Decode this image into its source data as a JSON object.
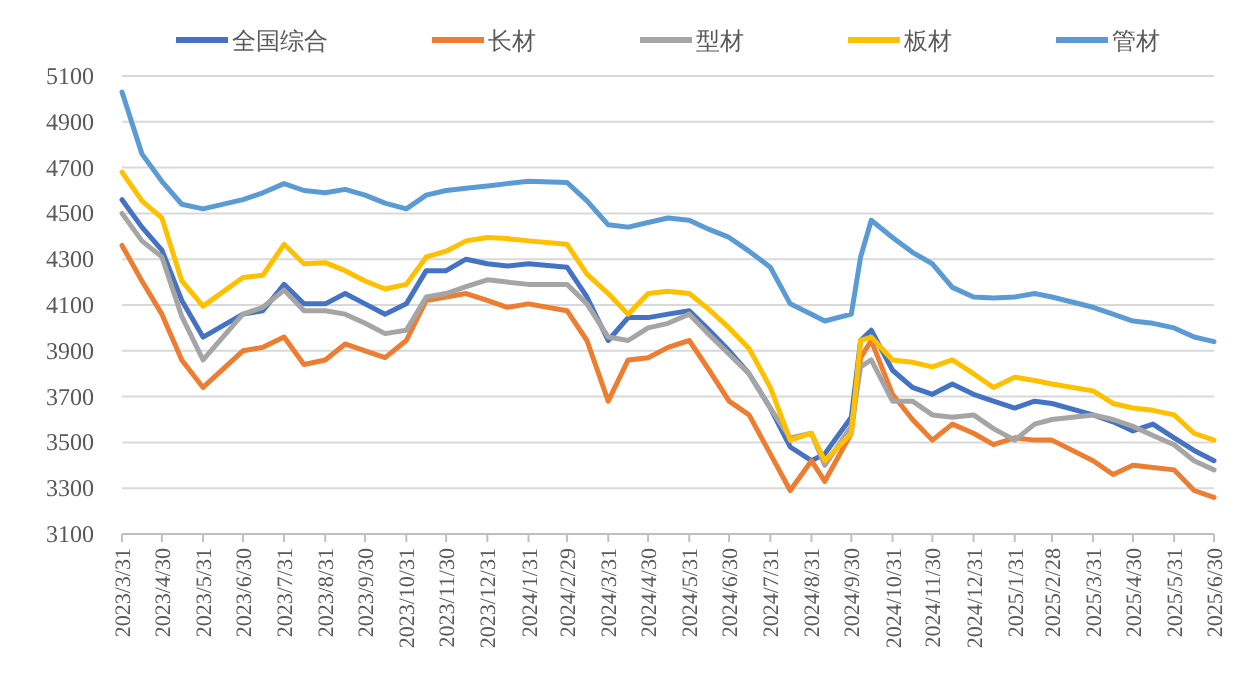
{
  "chart_data": {
    "type": "line",
    "legend": "top",
    "grid": "y",
    "marker": "none",
    "line_style": "solid",
    "x": [
      "2023-03-31",
      "2023-04-15",
      "2023-04-30",
      "2023-05-15",
      "2023-05-31",
      "2023-06-30",
      "2023-07-15",
      "2023-07-31",
      "2023-08-15",
      "2023-08-31",
      "2023-09-15",
      "2023-09-30",
      "2023-10-15",
      "2023-10-31",
      "2023-11-15",
      "2023-11-30",
      "2023-12-15",
      "2023-12-31",
      "2024-01-15",
      "2024-01-31",
      "2024-02-29",
      "2024-03-15",
      "2024-03-31",
      "2024-04-15",
      "2024-04-30",
      "2024-05-15",
      "2024-05-31",
      "2024-06-15",
      "2024-06-30",
      "2024-07-15",
      "2024-07-31",
      "2024-08-15",
      "2024-08-31",
      "2024-09-10",
      "2024-09-30",
      "2024-10-07",
      "2024-10-15",
      "2024-10-31",
      "2024-11-15",
      "2024-11-30",
      "2024-12-15",
      "2024-12-31",
      "2025-01-15",
      "2025-01-31",
      "2025-02-15",
      "2025-02-28",
      "2025-03-31",
      "2025-04-15",
      "2025-04-30",
      "2025-05-15",
      "2025-05-31",
      "2025-06-15",
      "2025-06-30"
    ],
    "xlim": [
      "2023-03-31",
      "2025-06-30"
    ],
    "xticks": [
      {
        "value": "2023-03-31",
        "label": "2023/3/31"
      },
      {
        "value": "2023-04-30",
        "label": "2023/4/30"
      },
      {
        "value": "2023-05-31",
        "label": "2023/5/31"
      },
      {
        "value": "2023-06-30",
        "label": "2023/6/30"
      },
      {
        "value": "2023-07-31",
        "label": "2023/7/31"
      },
      {
        "value": "2023-08-31",
        "label": "2023/8/31"
      },
      {
        "value": "2023-09-30",
        "label": "2023/9/30"
      },
      {
        "value": "2023-10-31",
        "label": "2023/10/31"
      },
      {
        "value": "2023-11-30",
        "label": "2023/11/30"
      },
      {
        "value": "2023-12-31",
        "label": "2023/12/31"
      },
      {
        "value": "2024-01-31",
        "label": "2024/1/31"
      },
      {
        "value": "2024-02-29",
        "label": "2024/2/29"
      },
      {
        "value": "2024-03-31",
        "label": "2024/3/31"
      },
      {
        "value": "2024-04-30",
        "label": "2024/4/30"
      },
      {
        "value": "2024-05-31",
        "label": "2024/5/31"
      },
      {
        "value": "2024-06-30",
        "label": "2024/6/30"
      },
      {
        "value": "2024-07-31",
        "label": "2024/7/31"
      },
      {
        "value": "2024-08-31",
        "label": "2024/8/31"
      },
      {
        "value": "2024-09-30",
        "label": "2024/9/30"
      },
      {
        "value": "2024-10-31",
        "label": "2024/10/31"
      },
      {
        "value": "2024-11-30",
        "label": "2024/11/30"
      },
      {
        "value": "2024-12-31",
        "label": "2024/12/31"
      },
      {
        "value": "2025-01-31",
        "label": "2025/1/31"
      },
      {
        "value": "2025-02-28",
        "label": "2025/2/28"
      },
      {
        "value": "2025-03-31",
        "label": "2025/3/31"
      },
      {
        "value": "2025-04-30",
        "label": "2025/4/30"
      },
      {
        "value": "2025-05-31",
        "label": "2025/5/31"
      },
      {
        "value": "2025-06-30",
        "label": "2025/6/30"
      }
    ],
    "ylim": [
      3100,
      5100
    ],
    "yticks": [
      3100,
      3300,
      3500,
      3700,
      3900,
      4100,
      4300,
      4500,
      4700,
      4900,
      5100
    ],
    "series": [
      {
        "name": "全国综合",
        "color": "#4472c4",
        "values": [
          4560,
          4440,
          4340,
          4120,
          3960,
          4060,
          4075,
          4190,
          4105,
          4105,
          4150,
          4105,
          4060,
          4105,
          4250,
          4250,
          4300,
          4280,
          4270,
          4280,
          4265,
          4135,
          3945,
          4045,
          4045,
          4060,
          4075,
          3990,
          3900,
          3800,
          3650,
          3480,
          3420,
          3450,
          3610,
          3945,
          3990,
          3815,
          3740,
          3710,
          3755,
          3710,
          3680,
          3650,
          3680,
          3670,
          3620,
          3590,
          3550,
          3580,
          3520,
          3465,
          3420
        ]
      },
      {
        "name": "长材",
        "color": "#ed7d31",
        "values": [
          4360,
          4205,
          4060,
          3860,
          3740,
          3900,
          3915,
          3960,
          3840,
          3860,
          3930,
          3900,
          3870,
          3945,
          4120,
          4135,
          4150,
          4120,
          4090,
          4105,
          4075,
          3945,
          3680,
          3860,
          3870,
          3915,
          3945,
          3815,
          3680,
          3620,
          3450,
          3290,
          3420,
          3330,
          3540,
          3870,
          3945,
          3710,
          3600,
          3510,
          3580,
          3540,
          3490,
          3520,
          3510,
          3510,
          3420,
          3360,
          3400,
          3390,
          3380,
          3290,
          3260
        ]
      },
      {
        "name": "型材",
        "color": "#a5a5a5",
        "values": [
          4500,
          4380,
          4310,
          4050,
          3860,
          4060,
          4090,
          4165,
          4075,
          4075,
          4060,
          4020,
          3975,
          3990,
          4135,
          4150,
          4180,
          4210,
          4200,
          4190,
          4190,
          4105,
          3960,
          3945,
          4000,
          4020,
          4060,
          3970,
          3885,
          3800,
          3650,
          3520,
          3540,
          3400,
          3570,
          3830,
          3860,
          3680,
          3680,
          3620,
          3610,
          3620,
          3560,
          3510,
          3580,
          3600,
          3620,
          3600,
          3570,
          3530,
          3490,
          3420,
          3380
        ]
      },
      {
        "name": "板材",
        "color": "#ffc000",
        "values": [
          4680,
          4555,
          4480,
          4205,
          4095,
          4220,
          4230,
          4365,
          4280,
          4285,
          4250,
          4205,
          4170,
          4190,
          4310,
          4335,
          4380,
          4395,
          4390,
          4380,
          4365,
          4235,
          4150,
          4060,
          4150,
          4160,
          4150,
          4080,
          4000,
          3910,
          3740,
          3510,
          3540,
          3420,
          3540,
          3945,
          3960,
          3860,
          3850,
          3830,
          3860,
          3800,
          3740,
          3785,
          3770,
          3755,
          3725,
          3670,
          3650,
          3640,
          3620,
          3540,
          3510
        ]
      },
      {
        "name": "管材",
        "color": "#5b9bd5",
        "values": [
          5030,
          4760,
          4640,
          4540,
          4520,
          4560,
          4590,
          4630,
          4600,
          4590,
          4605,
          4580,
          4545,
          4520,
          4580,
          4600,
          4610,
          4620,
          4630,
          4640,
          4635,
          4555,
          4450,
          4440,
          4460,
          4480,
          4470,
          4430,
          4395,
          4335,
          4265,
          4105,
          4060,
          4030,
          4060,
          4310,
          4470,
          4395,
          4330,
          4280,
          4177,
          4135,
          4130,
          4135,
          4150,
          4135,
          4090,
          4060,
          4030,
          4020,
          4000,
          3960,
          3940
        ]
      }
    ]
  }
}
